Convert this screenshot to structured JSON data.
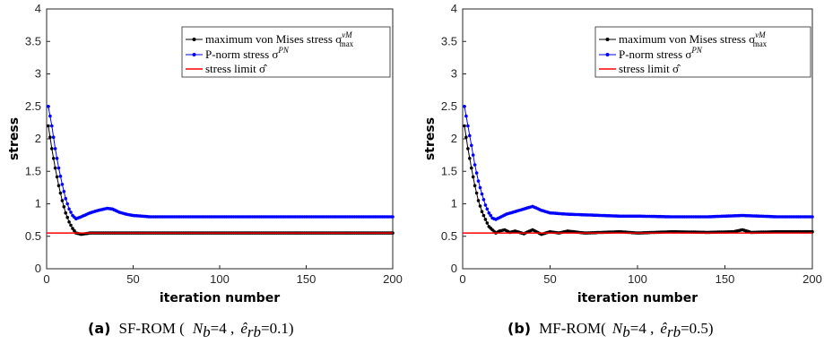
{
  "chart_data": [
    {
      "type": "line",
      "xlabel": "iteration number",
      "ylabel": "stress",
      "xlim": [
        0,
        200
      ],
      "ylim": [
        0,
        4
      ],
      "xticks": [
        "0",
        "50",
        "100",
        "150",
        "200"
      ],
      "yticks": [
        "0",
        "0.5",
        "1",
        "1.5",
        "2",
        "2.5",
        "3",
        "3.5",
        "4"
      ],
      "legend_position": "top-right",
      "caption": {
        "tag": "(a)",
        "text": "SF-ROM ( N_b=4 , ê_rb=0.1 )"
      },
      "series": [
        {
          "name": "maximum von Mises stress σ^vM_max",
          "color": "#000000",
          "marker": "circle",
          "x": [
            1,
            3,
            5,
            7,
            9,
            11,
            13,
            15,
            17,
            20,
            25,
            30,
            35,
            40,
            45,
            50,
            60,
            70,
            80,
            100,
            120,
            150,
            180,
            200
          ],
          "values": [
            2.2,
            1.85,
            1.55,
            1.28,
            1.05,
            0.86,
            0.72,
            0.62,
            0.55,
            0.53,
            0.55,
            0.55,
            0.55,
            0.55,
            0.55,
            0.55,
            0.55,
            0.55,
            0.55,
            0.55,
            0.55,
            0.55,
            0.55,
            0.55
          ]
        },
        {
          "name": "P-norm stress σ^PN",
          "color": "#0000ff",
          "marker": "circle",
          "x": [
            1,
            3,
            5,
            7,
            9,
            11,
            13,
            15,
            17,
            20,
            25,
            30,
            35,
            38,
            42,
            46,
            50,
            60,
            70,
            80,
            100,
            120,
            150,
            180,
            200
          ],
          "values": [
            2.5,
            2.2,
            1.85,
            1.55,
            1.3,
            1.08,
            0.92,
            0.82,
            0.77,
            0.8,
            0.86,
            0.9,
            0.93,
            0.92,
            0.87,
            0.84,
            0.82,
            0.8,
            0.8,
            0.8,
            0.8,
            0.8,
            0.8,
            0.8,
            0.8
          ]
        },
        {
          "name": "stress limit σ̂",
          "color": "#ff0000",
          "marker": "none",
          "x": [
            0,
            200
          ],
          "values": [
            0.55,
            0.55
          ]
        }
      ]
    },
    {
      "type": "line",
      "xlabel": "iteration number",
      "ylabel": "stress",
      "xlim": [
        0,
        200
      ],
      "ylim": [
        0,
        4
      ],
      "xticks": [
        "0",
        "50",
        "100",
        "150",
        "200"
      ],
      "yticks": [
        "0",
        "0.5",
        "1",
        "1.5",
        "2",
        "2.5",
        "3",
        "3.5",
        "4"
      ],
      "legend_position": "top-right",
      "caption": {
        "tag": "(b)",
        "text": "MF-ROM( N_b=4 , ê_rb=0.5 )"
      },
      "series": [
        {
          "name": "maximum von Mises stress σ^vM_max",
          "color": "#000000",
          "marker": "circle",
          "x": [
            1,
            3,
            5,
            7,
            9,
            11,
            13,
            15,
            17,
            19,
            21,
            24,
            27,
            30,
            35,
            40,
            45,
            50,
            55,
            60,
            70,
            80,
            90,
            100,
            120,
            140,
            155,
            160,
            165,
            180,
            200
          ],
          "values": [
            2.2,
            1.85,
            1.55,
            1.28,
            1.05,
            0.88,
            0.76,
            0.65,
            0.6,
            0.55,
            0.58,
            0.6,
            0.56,
            0.58,
            0.54,
            0.6,
            0.53,
            0.57,
            0.55,
            0.58,
            0.55,
            0.56,
            0.57,
            0.55,
            0.57,
            0.56,
            0.57,
            0.6,
            0.56,
            0.57,
            0.57
          ]
        },
        {
          "name": "P-norm stress σ^PN",
          "color": "#0000ff",
          "marker": "circle",
          "x": [
            1,
            3,
            5,
            7,
            9,
            11,
            13,
            15,
            17,
            19,
            22,
            25,
            30,
            35,
            40,
            45,
            50,
            60,
            70,
            80,
            90,
            100,
            120,
            140,
            160,
            180,
            200
          ],
          "values": [
            2.5,
            2.2,
            1.9,
            1.6,
            1.35,
            1.15,
            0.98,
            0.86,
            0.78,
            0.76,
            0.8,
            0.84,
            0.88,
            0.92,
            0.96,
            0.9,
            0.86,
            0.84,
            0.83,
            0.82,
            0.81,
            0.81,
            0.8,
            0.8,
            0.82,
            0.8,
            0.8
          ]
        },
        {
          "name": "stress limit σ̂",
          "color": "#ff0000",
          "marker": "none",
          "x": [
            0,
            200
          ],
          "values": [
            0.55,
            0.55
          ]
        }
      ]
    }
  ],
  "captions": [
    {
      "tag": "(a)",
      "label": "SF-ROM (",
      "n": "N",
      "n_sub": "b",
      "n_val": "=4 ,",
      "e": "ê",
      "e_sub": "rb",
      "e_val": "=0.1)"
    },
    {
      "tag": "(b)",
      "label": "MF-ROM(",
      "n": "N",
      "n_sub": "b",
      "n_val": "=4 ,",
      "e": "ê",
      "e_sub": "rb",
      "e_val": "=0.5)"
    }
  ],
  "legend": {
    "vm_text": "maximum von Mises stress σ",
    "vm_sup": "vM",
    "vm_sub": "max",
    "pn_text": "P-norm stress σ",
    "pn_sup": "PN",
    "lim_text": "stress limit σ̂"
  }
}
